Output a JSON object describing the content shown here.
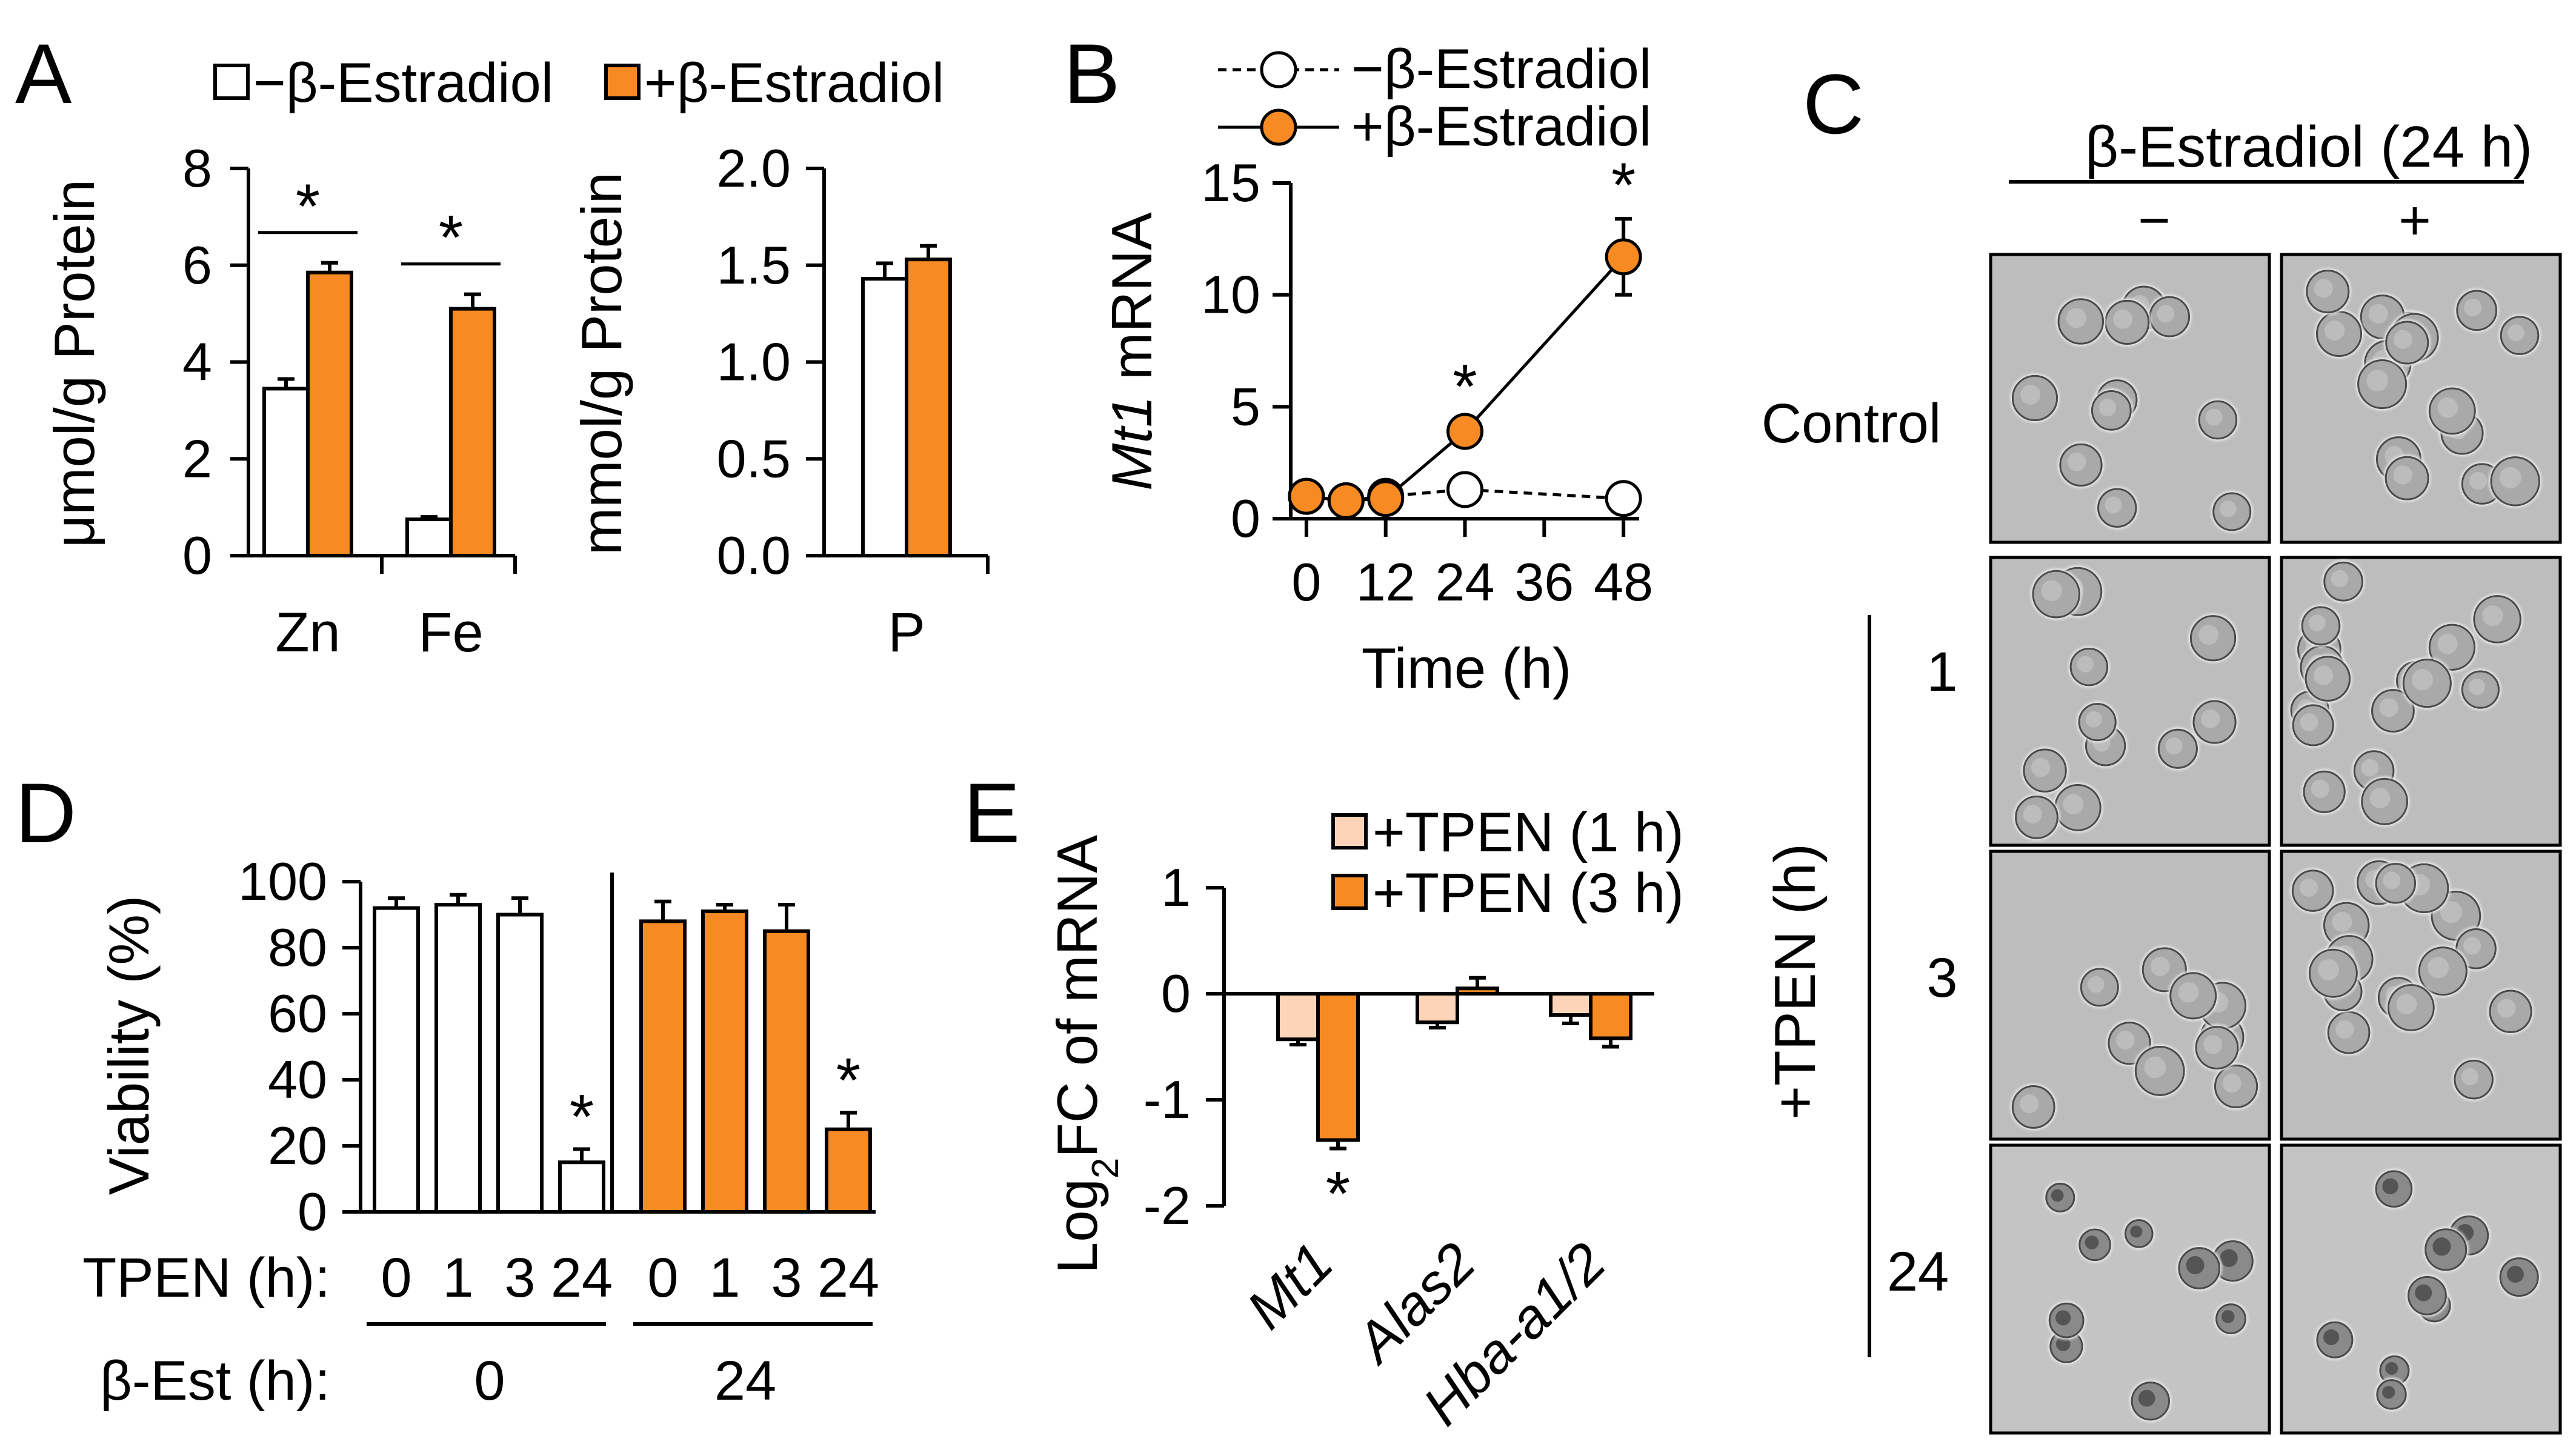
{
  "panels": {
    "A": {
      "letter": "A"
    },
    "B": {
      "letter": "B"
    },
    "C": {
      "letter": "C"
    },
    "D": {
      "letter": "D"
    },
    "E": {
      "letter": "E"
    }
  },
  "chart_data": [
    {
      "id": "A_left",
      "type": "bar",
      "legend": [
        "−β-Estradiol",
        "+β-Estradiol"
      ],
      "ylabel": "μmol/g Protein",
      "ylim": [
        0,
        8
      ],
      "yticks": [
        "0",
        "2",
        "4",
        "6",
        "8"
      ],
      "categories": [
        "Zn",
        "Fe"
      ],
      "series": [
        {
          "name": "−β-Estradiol",
          "values": [
            3.45,
            0.75
          ],
          "errors": [
            0.2,
            0.05
          ],
          "color": "#ffffff"
        },
        {
          "name": "+β-Estradiol",
          "values": [
            5.85,
            5.1
          ],
          "errors": [
            0.2,
            0.3
          ],
          "color": "#f78a23"
        }
      ],
      "significance": [
        "*",
        "*"
      ]
    },
    {
      "id": "A_right",
      "type": "bar",
      "ylabel": "mmol/g Protein",
      "ylim": [
        0,
        2.0
      ],
      "yticks": [
        "0.0",
        "0.5",
        "1.0",
        "1.5",
        "2.0"
      ],
      "categories": [
        "P"
      ],
      "series": [
        {
          "name": "−β-Estradiol",
          "values": [
            1.43
          ],
          "errors": [
            0.08
          ],
          "color": "#ffffff"
        },
        {
          "name": "+β-Estradiol",
          "values": [
            1.53
          ],
          "errors": [
            0.07
          ],
          "color": "#f78a23"
        }
      ]
    },
    {
      "id": "B",
      "type": "line",
      "ylabel_italic": "Mt1",
      "ylabel_rest": " mRNA",
      "xlabel": "Time (h)",
      "xlim": [
        0,
        48
      ],
      "ylim": [
        0,
        15
      ],
      "xticks": [
        "0",
        "12",
        "24",
        "36",
        "48"
      ],
      "yticks": [
        "0",
        "5",
        "10",
        "15"
      ],
      "series": [
        {
          "name": "−β-Estradiol",
          "x": [
            0,
            6,
            12,
            24,
            48
          ],
          "y": [
            1.0,
            0.8,
            1.0,
            1.3,
            0.9
          ],
          "errors": [
            0.1,
            0.1,
            0.1,
            0.15,
            0.1
          ],
          "color": "#ffffff",
          "dashed": true
        },
        {
          "name": "+β-Estradiol",
          "x": [
            0,
            6,
            12,
            24,
            48
          ],
          "y": [
            1.0,
            0.8,
            0.9,
            3.9,
            11.7
          ],
          "errors": [
            0.1,
            0.1,
            0.1,
            0.5,
            1.7
          ],
          "color": "#f78a23",
          "dashed": false
        }
      ],
      "significance": [
        {
          "x": 24,
          "label": "*"
        },
        {
          "x": 48,
          "label": "*"
        }
      ]
    },
    {
      "id": "D",
      "type": "bar",
      "ylabel": "Viability (%)",
      "ylim": [
        0,
        100
      ],
      "yticks": [
        "0",
        "20",
        "40",
        "60",
        "80",
        "100"
      ],
      "row1_label": "TPEN (h):",
      "row2_label": "β-Est (h):",
      "groups": [
        {
          "est": "0",
          "color": "#ffffff",
          "tpen": [
            "0",
            "1",
            "3",
            "24"
          ],
          "values": [
            92,
            93,
            90,
            15
          ],
          "errors": [
            3,
            3,
            5,
            4
          ]
        },
        {
          "est": "24",
          "color": "#f78a23",
          "tpen": [
            "0",
            "1",
            "3",
            "24"
          ],
          "values": [
            88,
            91,
            85,
            25
          ],
          "errors": [
            6,
            2,
            8,
            5
          ]
        }
      ],
      "significance": [
        "*",
        "*"
      ]
    },
    {
      "id": "E",
      "type": "bar",
      "ylabel_pre": "Log",
      "ylabel_sub": "2",
      "ylabel_post": "FC of mRNA",
      "ylim": [
        -2,
        1
      ],
      "yticks": [
        "-2",
        "-1",
        "0",
        "1"
      ],
      "legend": [
        "+TPEN (1 h)",
        "+TPEN (3 h)"
      ],
      "categories": [
        "Mt1",
        "Alas2",
        "Hba-a1/2"
      ],
      "series": [
        {
          "name": "+TPEN (1 h)",
          "values": [
            -0.43,
            -0.27,
            -0.2
          ],
          "errors": [
            0.05,
            0.05,
            0.08
          ],
          "color": "#fdd4b8"
        },
        {
          "name": "+TPEN (3 h)",
          "values": [
            -1.38,
            0.05,
            -0.42
          ],
          "errors": [
            0.08,
            0.1,
            0.08
          ],
          "color": "#f78a23"
        }
      ],
      "significance": "*"
    }
  ],
  "micrographs": {
    "header": "β-Estradiol (24 h)",
    "col_labels": [
      "−",
      "+"
    ],
    "row_labels": [
      "Control",
      "1",
      "3",
      "24"
    ],
    "side_label": "+TPEN (h)"
  }
}
